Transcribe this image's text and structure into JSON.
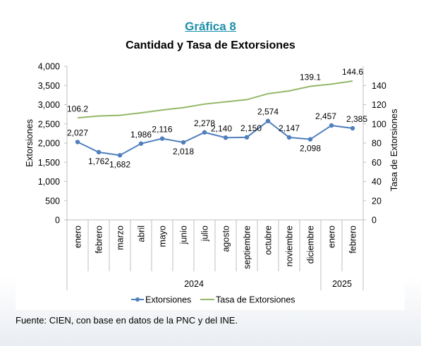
{
  "figure_label": "Gráfica 8",
  "source_note": "Fuente: CIEN, con base en datos de la PNC y del INE.",
  "colors": {
    "extorsiones": "#4f7fbd",
    "tasa": "#93b868",
    "label": "#1b8fa8"
  },
  "chart_data": {
    "type": "line",
    "title": "Cantidad y Tasa de Extorsiones",
    "ylabel_left": "Extorsiones",
    "ylabel_right": "Tasa de Extorsiones",
    "ylim_left": [
      0,
      4000
    ],
    "yticks_left": [
      "0",
      "500",
      "1,000",
      "1,500",
      "2,000",
      "2,500",
      "3,000",
      "3,500",
      "4,000"
    ],
    "ylim_right": [
      0,
      160
    ],
    "yticks_right": [
      "0",
      "20",
      "40",
      "60",
      "80",
      "100",
      "120",
      "140"
    ],
    "categories": [
      "enero",
      "febrero",
      "marzo",
      "abril",
      "mayo",
      "junio",
      "julio",
      "agosto",
      "septiembre",
      "octubre",
      "noviembre",
      "diciembre",
      "enero",
      "febrero"
    ],
    "year_groups": [
      {
        "label": "2024",
        "count": 12
      },
      {
        "label": "2025",
        "count": 2
      }
    ],
    "legend_position": "bottom",
    "grid": false,
    "series": [
      {
        "name": "Extorsiones",
        "axis": "left",
        "values": [
          2027,
          1762,
          1682,
          1986,
          2116,
          2018,
          2278,
          2140,
          2150,
          2574,
          2147,
          2098,
          2457,
          2385
        ],
        "labels": [
          "2,027",
          "1,762",
          "1,682",
          "1,986",
          "2,116",
          "2,018",
          "2,278",
          "2,140",
          "2,150",
          "2,574",
          "2,147",
          "2,098",
          "2,457",
          "2,385"
        ]
      },
      {
        "name": "Tasa de Extorsiones",
        "axis": "right",
        "values": [
          106.2,
          108.2,
          108.9,
          111.5,
          114.4,
          116.9,
          120.6,
          122.9,
          125.2,
          131.4,
          134.3,
          139.1,
          141.4,
          144.6
        ],
        "labels": [
          "106.2",
          "",
          "",
          "",
          "",
          "",
          "",
          "",
          "",
          "",
          "",
          "139.1",
          "",
          "144.6"
        ]
      }
    ]
  }
}
